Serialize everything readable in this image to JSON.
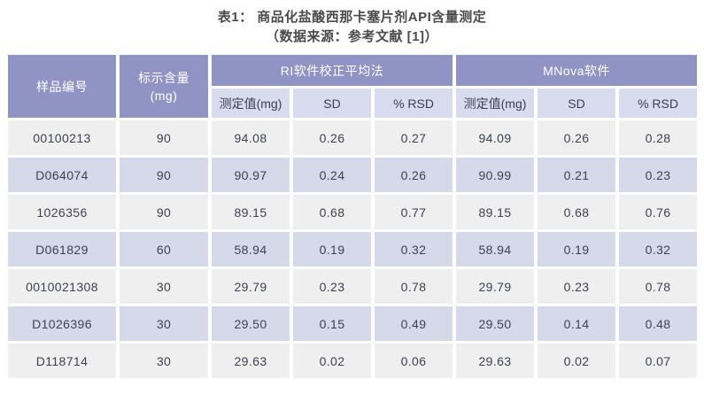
{
  "title": {
    "line1": "表1： 商品化盐酸西那卡塞片剂API含量测定",
    "line2": "（数据来源：参考文献 [1]）"
  },
  "table": {
    "col_sample": "样品编号",
    "col_labeled_line1": "标示含量",
    "col_labeled_line2": "(mg)",
    "group_ri": "RI软件校正平均法",
    "group_mnova": "MNova软件",
    "sub_headers": [
      "测定值(mg)",
      "SD",
      "% RSD",
      "测定值(mg)",
      "SD",
      "% RSD"
    ],
    "rows": [
      [
        "00100213",
        "90",
        "94.08",
        "0.26",
        "0.27",
        "94.09",
        "0.26",
        "0.28"
      ],
      [
        "D064074",
        "90",
        "90.97",
        "0.24",
        "0.26",
        "90.99",
        "0.21",
        "0.23"
      ],
      [
        "1026356",
        "90",
        "89.15",
        "0.68",
        "0.77",
        "89.15",
        "0.68",
        "0.76"
      ],
      [
        "D061829",
        "60",
        "58.94",
        "0.19",
        "0.32",
        "58.94",
        "0.19",
        "0.32"
      ],
      [
        "0010021308",
        "30",
        "29.79",
        "0.23",
        "0.78",
        "29.79",
        "0.23",
        "0.78"
      ],
      [
        "D1026396",
        "30",
        "29.50",
        "0.15",
        "0.49",
        "29.50",
        "0.14",
        "0.48"
      ],
      [
        "D118714",
        "30",
        "29.63",
        "0.02",
        "0.06",
        "29.63",
        "0.02",
        "0.07"
      ]
    ]
  },
  "colors": {
    "header_bg": "#8f94c4",
    "subheader_bg": "#d9dcee",
    "row_odd_bg": "#efeff0",
    "row_even_bg": "#d6d9ea",
    "header_text": "#ffffff",
    "body_text": "#3e4150",
    "title_text": "#4b4b4b"
  }
}
